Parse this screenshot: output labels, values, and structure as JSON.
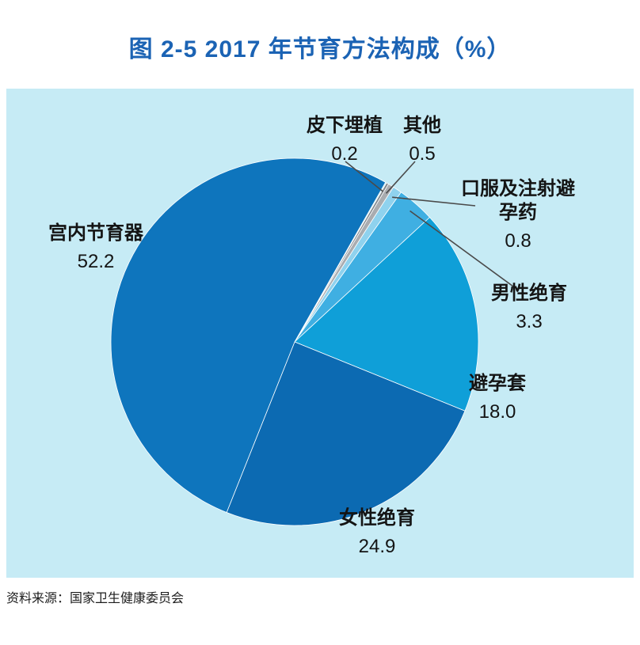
{
  "title": "图 2-5  2017 年节育方法构成（%）",
  "source": "资料来源：国家卫生健康委员会",
  "colors": {
    "title_blue": "#1b63b4",
    "panel_background": "#c6ebf5",
    "leader_line": "#4a4a4a"
  },
  "chart_data": {
    "type": "pie",
    "title": "图 2-5 2017 年节育方法构成（%）",
    "unit": "%",
    "start_angle": 30,
    "direction": "clockwise",
    "legend_position": "none",
    "slices": [
      {
        "label": "皮下埋植",
        "value": 0.2,
        "display": "0.2",
        "color": "#82878c"
      },
      {
        "label": "其他",
        "value": 0.5,
        "display": "0.5",
        "color": "#a9acb0"
      },
      {
        "label": "口服及注射避孕药",
        "value": 0.8,
        "display": "0.8",
        "color": "#8fd2ee"
      },
      {
        "label": "男性绝育",
        "value": 3.3,
        "display": "3.3",
        "color": "#3fafe2"
      },
      {
        "label": "避孕套",
        "value": 18.0,
        "display": "18.0",
        "color": "#0f9fd8"
      },
      {
        "label": "女性绝育",
        "value": 24.9,
        "display": "24.9",
        "color": "#0c6ab2"
      },
      {
        "label": "宫内节育器",
        "value": 52.2,
        "display": "52.2",
        "color": "#0e75bd"
      }
    ]
  }
}
